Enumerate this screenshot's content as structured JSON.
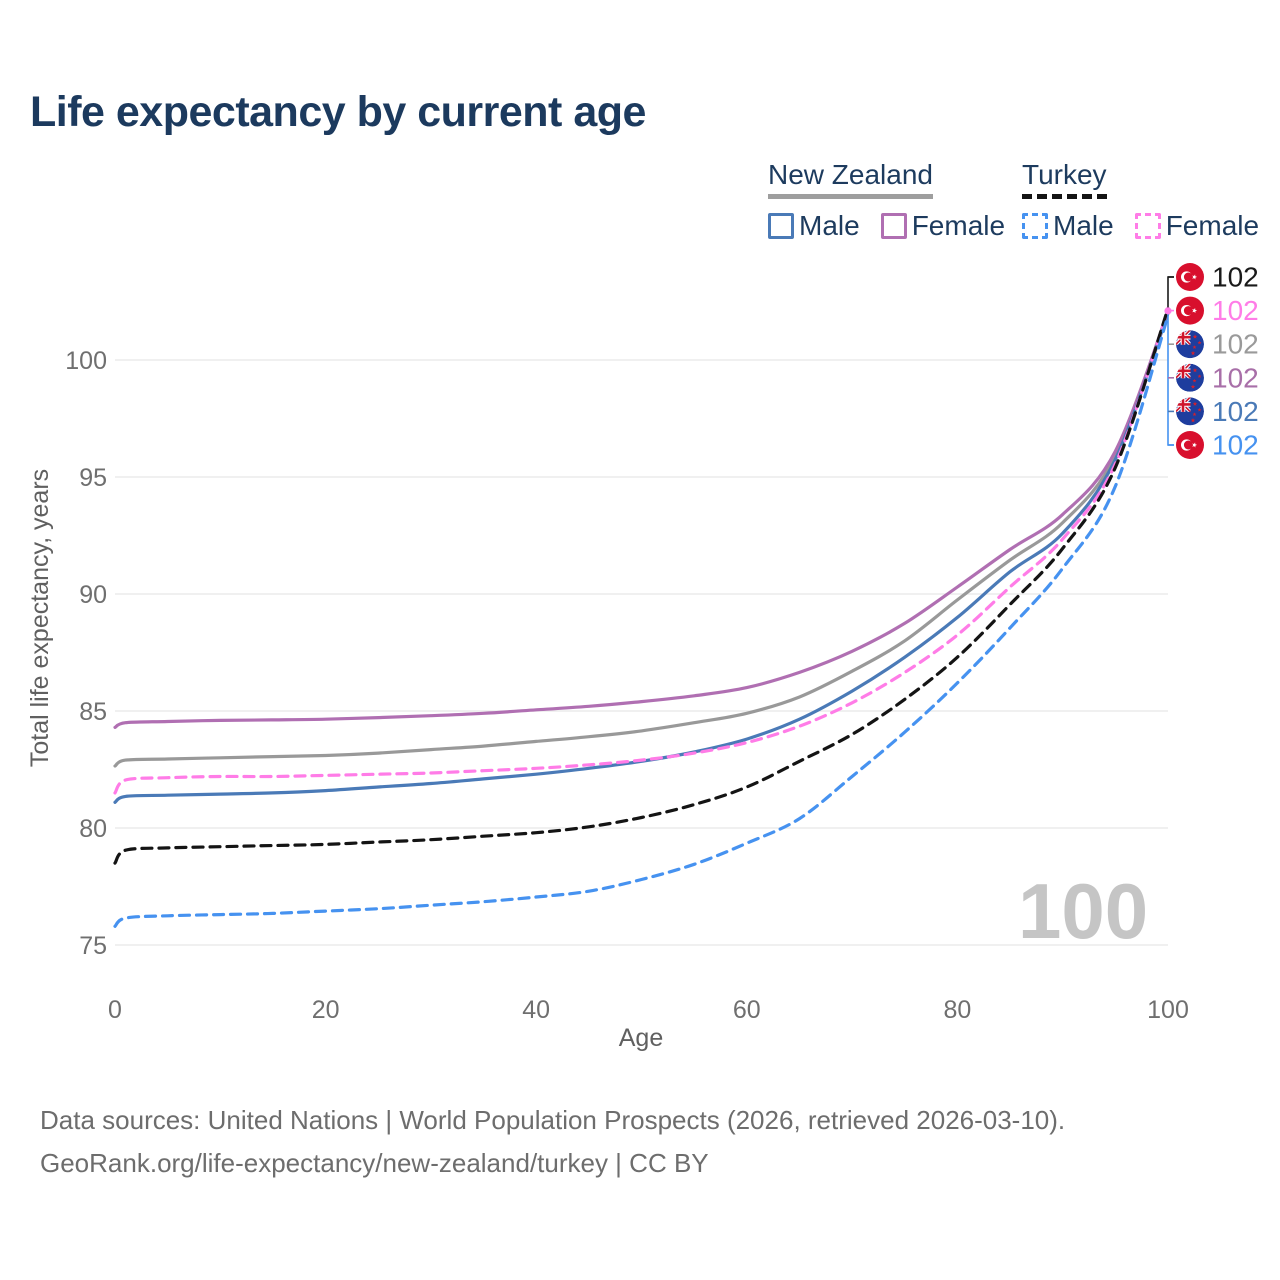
{
  "title": "Life expectancy by current age",
  "legend": {
    "groups": [
      {
        "label": "New Zealand",
        "line_style": "solid",
        "underline_color": "#9e9e9e",
        "items": [
          {
            "label": "Male",
            "color": "#4a7ab7",
            "dashed": false
          },
          {
            "label": "Female",
            "color": "#b06fb2",
            "dashed": false
          }
        ]
      },
      {
        "label": "Turkey",
        "line_style": "dashed",
        "underline_color": "#141414",
        "items": [
          {
            "label": "Male",
            "color": "#4692f0",
            "dashed": true
          },
          {
            "label": "Female",
            "color": "#ff7ce7",
            "dashed": true
          }
        ]
      }
    ]
  },
  "chart_data": {
    "type": "line",
    "title": "Life expectancy by current age",
    "xlabel": "Age",
    "ylabel": "Total life expectancy, years",
    "xlim": [
      0,
      100
    ],
    "ylim": [
      75,
      100
    ],
    "x_ticks": [
      0,
      20,
      40,
      60,
      80,
      100
    ],
    "y_ticks": [
      75,
      80,
      85,
      90,
      95,
      100
    ],
    "grid": "horizontal-only",
    "legend_position": "top-right",
    "age_indicator": "100",
    "x": [
      0,
      1,
      5,
      10,
      15,
      20,
      25,
      30,
      35,
      40,
      45,
      50,
      55,
      60,
      65,
      70,
      75,
      80,
      85,
      90,
      95,
      100
    ],
    "series": [
      {
        "name": "New Zealand",
        "group": "New Zealand",
        "sex": "total",
        "color": "#999999",
        "dash": "solid",
        "values": [
          82.65,
          82.9,
          82.95,
          83.0,
          83.05,
          83.1,
          83.2,
          83.35,
          83.5,
          83.7,
          83.9,
          84.15,
          84.5,
          84.9,
          85.6,
          86.7,
          88.0,
          89.75,
          91.45,
          93.05,
          95.9,
          102.1
        ]
      },
      {
        "name": "New Zealand Female",
        "group": "New Zealand",
        "sex": "female",
        "color": "#b06fb2",
        "dash": "solid",
        "values": [
          84.3,
          84.5,
          84.55,
          84.6,
          84.62,
          84.65,
          84.72,
          84.8,
          84.9,
          85.05,
          85.2,
          85.4,
          85.65,
          86.0,
          86.65,
          87.55,
          88.75,
          90.3,
          91.9,
          93.4,
          96.1,
          102.05
        ]
      },
      {
        "name": "New Zealand Male",
        "group": "New Zealand",
        "sex": "male",
        "color": "#4a7ab7",
        "dash": "solid",
        "values": [
          81.1,
          81.35,
          81.4,
          81.45,
          81.5,
          81.6,
          81.75,
          81.9,
          82.1,
          82.3,
          82.55,
          82.85,
          83.25,
          83.8,
          84.65,
          85.85,
          87.3,
          89.0,
          90.95,
          92.6,
          95.75,
          102.0
        ]
      },
      {
        "name": "Turkey Female",
        "group": "Turkey",
        "sex": "female",
        "color": "#ff7ce7",
        "dash": "dashed",
        "values": [
          81.5,
          82.05,
          82.15,
          82.2,
          82.2,
          82.25,
          82.3,
          82.35,
          82.45,
          82.55,
          82.7,
          82.9,
          83.2,
          83.65,
          84.35,
          85.35,
          86.65,
          88.25,
          90.3,
          92.35,
          95.55,
          102.15
        ]
      },
      {
        "name": "Turkey",
        "group": "Turkey",
        "sex": "total",
        "color": "#141414",
        "dash": "dashed",
        "values": [
          78.5,
          79.05,
          79.15,
          79.2,
          79.25,
          79.3,
          79.4,
          79.5,
          79.65,
          79.8,
          80.05,
          80.45,
          81.0,
          81.75,
          82.85,
          84.0,
          85.5,
          87.3,
          89.55,
          91.95,
          95.4,
          102.2
        ]
      },
      {
        "name": "Turkey Male",
        "group": "Turkey",
        "sex": "male",
        "color": "#4692f0",
        "dash": "dashed",
        "values": [
          75.8,
          76.15,
          76.25,
          76.3,
          76.35,
          76.45,
          76.55,
          76.7,
          76.85,
          77.05,
          77.3,
          77.8,
          78.45,
          79.35,
          80.4,
          82.2,
          84.1,
          86.2,
          88.55,
          91.1,
          94.6,
          101.9
        ]
      }
    ],
    "end_labels": [
      {
        "value": "102",
        "flag": "turkey",
        "color": "#1a1a1a",
        "series": "Turkey"
      },
      {
        "value": "102",
        "flag": "turkey",
        "color": "#ff7ce7",
        "series": "Turkey Female"
      },
      {
        "value": "102",
        "flag": "new-zealand",
        "color": "#9a9a9a",
        "series": "New Zealand"
      },
      {
        "value": "102",
        "flag": "new-zealand",
        "color": "#a86fa8",
        "series": "New Zealand Female"
      },
      {
        "value": "102",
        "flag": "new-zealand",
        "color": "#4a7ab7",
        "series": "New Zealand Male"
      },
      {
        "value": "102",
        "flag": "turkey",
        "color": "#4692f0",
        "series": "Turkey Male"
      }
    ]
  },
  "footer": {
    "line1": "Data sources: United Nations | World Population Prospects (2026, retrieved 2026-03-10).",
    "line2": "GeoRank.org/life-expectancy/new-zealand/turkey | CC BY"
  }
}
